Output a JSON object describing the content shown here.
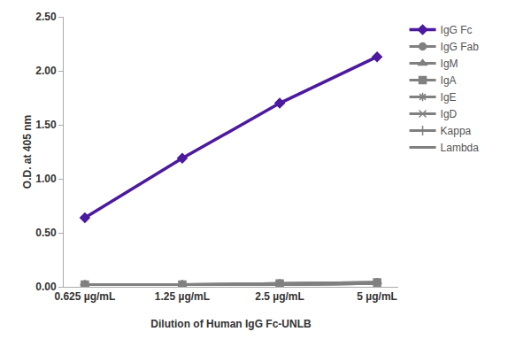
{
  "chart_data": {
    "type": "line",
    "x_label": "Dilution of Human IgG Fc-UNLB",
    "y_label": "O.D. at 405 nm",
    "categories": [
      "0.625 µg/mL",
      "1.25 µg/mL",
      "2.5 µg/mL",
      "5 µg/mL"
    ],
    "series": [
      {
        "name": "IgG Fc",
        "color": "#4b1a9e",
        "marker": "diamond",
        "values": [
          0.64,
          1.19,
          1.7,
          2.13
        ]
      },
      {
        "name": "IgG Fab",
        "color": "#808080",
        "marker": "circle",
        "values": [
          0.02,
          0.02,
          0.03,
          0.04
        ]
      },
      {
        "name": "IgM",
        "color": "#808080",
        "marker": "triangle",
        "values": [
          0.02,
          0.02,
          0.03,
          0.04
        ]
      },
      {
        "name": "IgA",
        "color": "#808080",
        "marker": "square",
        "values": [
          0.02,
          0.02,
          0.03,
          0.04
        ]
      },
      {
        "name": "IgE",
        "color": "#808080",
        "marker": "asterisk",
        "values": [
          0.02,
          0.02,
          0.02,
          0.03
        ]
      },
      {
        "name": "IgD",
        "color": "#808080",
        "marker": "x",
        "values": [
          0.02,
          0.02,
          0.02,
          0.03
        ]
      },
      {
        "name": "Kappa",
        "color": "#808080",
        "marker": "plus",
        "values": [
          0.02,
          0.02,
          0.02,
          0.03
        ]
      },
      {
        "name": "Lambda",
        "color": "#808080",
        "marker": "none",
        "values": [
          0.02,
          0.02,
          0.02,
          0.03
        ]
      }
    ],
    "ylim": [
      0,
      2.5
    ],
    "yticks": [
      {
        "value": 0,
        "label": "0.00"
      },
      {
        "value": 0.5,
        "label": "0.50"
      },
      {
        "value": 1,
        "label": "1.00"
      },
      {
        "value": 1.5,
        "label": "1.50"
      },
      {
        "value": 2,
        "label": "2.00"
      },
      {
        "value": 2.5,
        "label": "2.50"
      }
    ],
    "grid": false,
    "legend": "right"
  }
}
